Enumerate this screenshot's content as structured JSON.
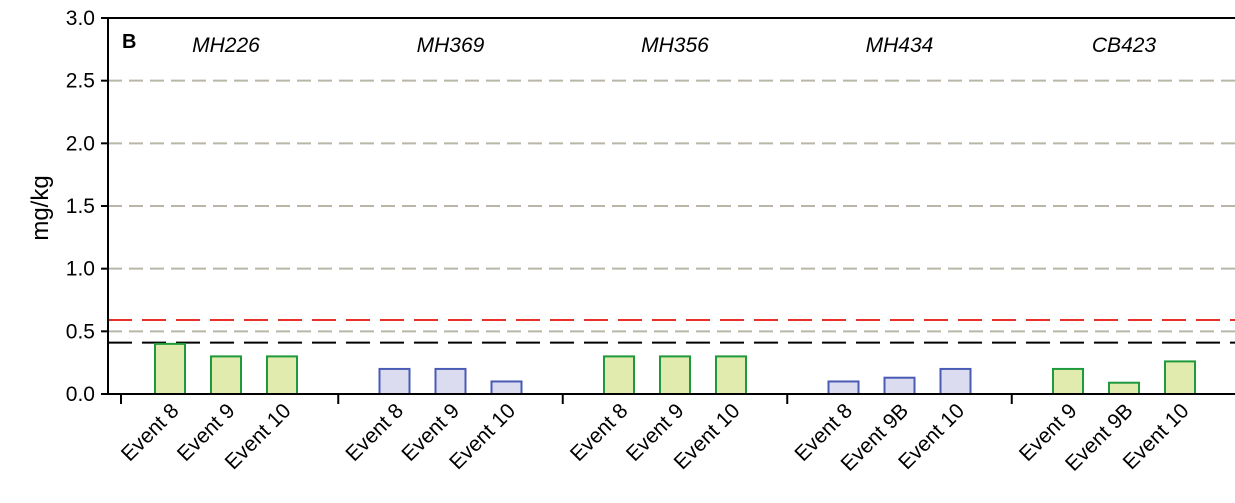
{
  "chart_data": {
    "type": "bar",
    "panel_label": "B",
    "ylabel": "mg/kg",
    "xlabel": "",
    "ylim": [
      0,
      3.0
    ],
    "y_ticks": [
      "0.0",
      "0.5",
      "1.0",
      "1.5",
      "2.0",
      "2.5",
      "3.0"
    ],
    "grid": "horizontal dashed gray at 0.5 intervals",
    "reference_lines": [
      {
        "value": 0.59,
        "color": "#e8302a"
      },
      {
        "value": 0.41,
        "color": "#000000"
      }
    ],
    "groups": [
      {
        "name": "MH226",
        "color": "#e0ebad",
        "edge": "#1e9a3c",
        "categories": [
          "Event 8",
          "Event 9",
          "Event 10"
        ],
        "values": [
          0.4,
          0.3,
          0.3
        ]
      },
      {
        "name": "MH369",
        "color": "#dcdcf0",
        "edge": "#4a5bb5",
        "categories": [
          "Event 8",
          "Event 9",
          "Event 10"
        ],
        "values": [
          0.2,
          0.2,
          0.1
        ]
      },
      {
        "name": "MH356",
        "color": "#e0ebad",
        "edge": "#1e9a3c",
        "categories": [
          "Event 8",
          "Event 9",
          "Event 10"
        ],
        "values": [
          0.3,
          0.3,
          0.3
        ]
      },
      {
        "name": "MH434",
        "color": "#dcdcf0",
        "edge": "#4a5bb5",
        "categories": [
          "Event 8",
          "Event 9B",
          "Event 10"
        ],
        "values": [
          0.1,
          0.13,
          0.2
        ]
      },
      {
        "name": "CB423",
        "color": "#e0ebad",
        "edge": "#1e9a3c",
        "categories": [
          "Event 9",
          "Event 9B",
          "Event 10"
        ],
        "values": [
          0.2,
          0.09,
          0.26
        ]
      }
    ]
  }
}
